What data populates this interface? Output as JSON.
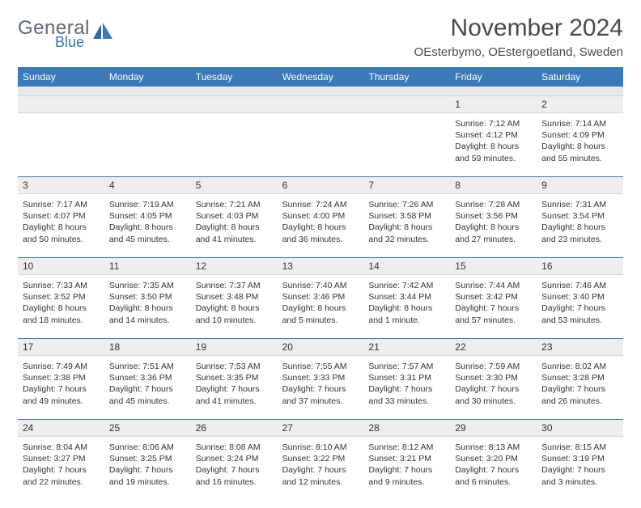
{
  "brand": {
    "word1": "General",
    "word2": "Blue"
  },
  "title": "November 2024",
  "location": "OEsterbymo, OEstergoetland, Sweden",
  "colors": {
    "header_bg": "#3a7ab8",
    "header_text": "#ffffff",
    "daynum_bg": "#eeeeee",
    "daynum_border_top": "#3a7ab8",
    "body_text": "#333333",
    "title_text": "#4a4a4a",
    "logo_gray": "#5a6a78",
    "logo_blue": "#3a7ab8"
  },
  "layout": {
    "cols": 7,
    "rows": 5,
    "cell_font_size_pt": 8,
    "daynum_font_size_pt": 9
  },
  "dayNames": [
    "Sunday",
    "Monday",
    "Tuesday",
    "Wednesday",
    "Thursday",
    "Friday",
    "Saturday"
  ],
  "weeks": [
    [
      {
        "n": "",
        "sr": "",
        "ss": "",
        "dl": ""
      },
      {
        "n": "",
        "sr": "",
        "ss": "",
        "dl": ""
      },
      {
        "n": "",
        "sr": "",
        "ss": "",
        "dl": ""
      },
      {
        "n": "",
        "sr": "",
        "ss": "",
        "dl": ""
      },
      {
        "n": "",
        "sr": "",
        "ss": "",
        "dl": ""
      },
      {
        "n": "1",
        "sr": "Sunrise: 7:12 AM",
        "ss": "Sunset: 4:12 PM",
        "dl": "Daylight: 8 hours and 59 minutes."
      },
      {
        "n": "2",
        "sr": "Sunrise: 7:14 AM",
        "ss": "Sunset: 4:09 PM",
        "dl": "Daylight: 8 hours and 55 minutes."
      }
    ],
    [
      {
        "n": "3",
        "sr": "Sunrise: 7:17 AM",
        "ss": "Sunset: 4:07 PM",
        "dl": "Daylight: 8 hours and 50 minutes."
      },
      {
        "n": "4",
        "sr": "Sunrise: 7:19 AM",
        "ss": "Sunset: 4:05 PM",
        "dl": "Daylight: 8 hours and 45 minutes."
      },
      {
        "n": "5",
        "sr": "Sunrise: 7:21 AM",
        "ss": "Sunset: 4:03 PM",
        "dl": "Daylight: 8 hours and 41 minutes."
      },
      {
        "n": "6",
        "sr": "Sunrise: 7:24 AM",
        "ss": "Sunset: 4:00 PM",
        "dl": "Daylight: 8 hours and 36 minutes."
      },
      {
        "n": "7",
        "sr": "Sunrise: 7:26 AM",
        "ss": "Sunset: 3:58 PM",
        "dl": "Daylight: 8 hours and 32 minutes."
      },
      {
        "n": "8",
        "sr": "Sunrise: 7:28 AM",
        "ss": "Sunset: 3:56 PM",
        "dl": "Daylight: 8 hours and 27 minutes."
      },
      {
        "n": "9",
        "sr": "Sunrise: 7:31 AM",
        "ss": "Sunset: 3:54 PM",
        "dl": "Daylight: 8 hours and 23 minutes."
      }
    ],
    [
      {
        "n": "10",
        "sr": "Sunrise: 7:33 AM",
        "ss": "Sunset: 3:52 PM",
        "dl": "Daylight: 8 hours and 18 minutes."
      },
      {
        "n": "11",
        "sr": "Sunrise: 7:35 AM",
        "ss": "Sunset: 3:50 PM",
        "dl": "Daylight: 8 hours and 14 minutes."
      },
      {
        "n": "12",
        "sr": "Sunrise: 7:37 AM",
        "ss": "Sunset: 3:48 PM",
        "dl": "Daylight: 8 hours and 10 minutes."
      },
      {
        "n": "13",
        "sr": "Sunrise: 7:40 AM",
        "ss": "Sunset: 3:46 PM",
        "dl": "Daylight: 8 hours and 5 minutes."
      },
      {
        "n": "14",
        "sr": "Sunrise: 7:42 AM",
        "ss": "Sunset: 3:44 PM",
        "dl": "Daylight: 8 hours and 1 minute."
      },
      {
        "n": "15",
        "sr": "Sunrise: 7:44 AM",
        "ss": "Sunset: 3:42 PM",
        "dl": "Daylight: 7 hours and 57 minutes."
      },
      {
        "n": "16",
        "sr": "Sunrise: 7:46 AM",
        "ss": "Sunset: 3:40 PM",
        "dl": "Daylight: 7 hours and 53 minutes."
      }
    ],
    [
      {
        "n": "17",
        "sr": "Sunrise: 7:49 AM",
        "ss": "Sunset: 3:38 PM",
        "dl": "Daylight: 7 hours and 49 minutes."
      },
      {
        "n": "18",
        "sr": "Sunrise: 7:51 AM",
        "ss": "Sunset: 3:36 PM",
        "dl": "Daylight: 7 hours and 45 minutes."
      },
      {
        "n": "19",
        "sr": "Sunrise: 7:53 AM",
        "ss": "Sunset: 3:35 PM",
        "dl": "Daylight: 7 hours and 41 minutes."
      },
      {
        "n": "20",
        "sr": "Sunrise: 7:55 AM",
        "ss": "Sunset: 3:33 PM",
        "dl": "Daylight: 7 hours and 37 minutes."
      },
      {
        "n": "21",
        "sr": "Sunrise: 7:57 AM",
        "ss": "Sunset: 3:31 PM",
        "dl": "Daylight: 7 hours and 33 minutes."
      },
      {
        "n": "22",
        "sr": "Sunrise: 7:59 AM",
        "ss": "Sunset: 3:30 PM",
        "dl": "Daylight: 7 hours and 30 minutes."
      },
      {
        "n": "23",
        "sr": "Sunrise: 8:02 AM",
        "ss": "Sunset: 3:28 PM",
        "dl": "Daylight: 7 hours and 26 minutes."
      }
    ],
    [
      {
        "n": "24",
        "sr": "Sunrise: 8:04 AM",
        "ss": "Sunset: 3:27 PM",
        "dl": "Daylight: 7 hours and 22 minutes."
      },
      {
        "n": "25",
        "sr": "Sunrise: 8:06 AM",
        "ss": "Sunset: 3:25 PM",
        "dl": "Daylight: 7 hours and 19 minutes."
      },
      {
        "n": "26",
        "sr": "Sunrise: 8:08 AM",
        "ss": "Sunset: 3:24 PM",
        "dl": "Daylight: 7 hours and 16 minutes."
      },
      {
        "n": "27",
        "sr": "Sunrise: 8:10 AM",
        "ss": "Sunset: 3:22 PM",
        "dl": "Daylight: 7 hours and 12 minutes."
      },
      {
        "n": "28",
        "sr": "Sunrise: 8:12 AM",
        "ss": "Sunset: 3:21 PM",
        "dl": "Daylight: 7 hours and 9 minutes."
      },
      {
        "n": "29",
        "sr": "Sunrise: 8:13 AM",
        "ss": "Sunset: 3:20 PM",
        "dl": "Daylight: 7 hours and 6 minutes."
      },
      {
        "n": "30",
        "sr": "Sunrise: 8:15 AM",
        "ss": "Sunset: 3:19 PM",
        "dl": "Daylight: 7 hours and 3 minutes."
      }
    ]
  ]
}
